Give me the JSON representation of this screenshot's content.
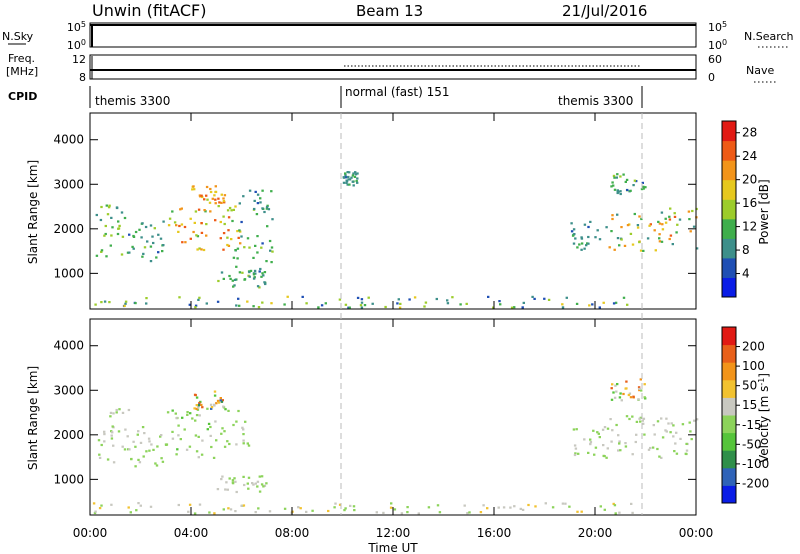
{
  "header": {
    "station": "Unwin (fitACF)",
    "beam": "Beam 13",
    "date": "21/Jul/2016"
  },
  "nsky_panel": {
    "label": "N.Sky",
    "left_ticks": [
      "10^5",
      "10^0"
    ],
    "right_ticks": [
      "10^5",
      "10^0"
    ],
    "right_label": "N.Search"
  },
  "freq_panel": {
    "label_line1": "Freq.",
    "label_line2": "[MHz]",
    "left_ticks": [
      "12",
      "8"
    ],
    "right_ticks": [
      "60",
      "0"
    ],
    "right_label": "Nave"
  },
  "cpid": {
    "label": "CPID",
    "segments": [
      {
        "text": "themis 3300",
        "start_hour": 0
      },
      {
        "text": "normal (fast) 151",
        "start_hour": 10
      },
      {
        "text": "themis 3300",
        "start_hour": 22
      }
    ]
  },
  "x_axis": {
    "label": "Time UT",
    "ticks": [
      "00:00",
      "04:00",
      "08:00",
      "12:00",
      "16:00",
      "20:00",
      "00:00"
    ]
  },
  "chart_data": [
    {
      "type": "heatmap",
      "title": "",
      "xlabel": "Time UT",
      "ylabel": "Slant Range [km]",
      "xlim_hours": [
        0,
        24
      ],
      "ylim_km": [
        200,
        4600
      ],
      "yticks": [
        "1000",
        "2000",
        "3000",
        "4000"
      ],
      "colorbar": {
        "label": "Power [dB]",
        "ticks": [
          "4",
          "8",
          "12",
          "16",
          "20",
          "24",
          "28"
        ],
        "range": [
          0,
          30
        ],
        "colors": [
          "#0a1de6",
          "#1f4fb4",
          "#3d8f8a",
          "#3fae4c",
          "#9ccc2b",
          "#e6c81e",
          "#f2941a",
          "#ee5a16",
          "#e11a14"
        ]
      },
      "regions": [
        {
          "hours": [
            0.2,
            1.5
          ],
          "km": [
            1400,
            2600
          ],
          "value_range": [
            6,
            16
          ]
        },
        {
          "hours": [
            1.5,
            3.0
          ],
          "km": [
            1300,
            2200
          ],
          "value_range": [
            6,
            14
          ]
        },
        {
          "hours": [
            3.0,
            6.3
          ],
          "km": [
            1500,
            2600
          ],
          "value_range": [
            12,
            26
          ]
        },
        {
          "hours": [
            4.0,
            5.3
          ],
          "km": [
            2600,
            3000
          ],
          "value_range": [
            16,
            26
          ]
        },
        {
          "hours": [
            5.5,
            7.2
          ],
          "km": [
            1000,
            2900
          ],
          "value_range": [
            6,
            14
          ]
        },
        {
          "hours": [
            5.0,
            7.0
          ],
          "km": [
            700,
            1100
          ],
          "value_range": [
            6,
            16
          ]
        },
        {
          "hours": [
            10.0,
            10.6
          ],
          "km": [
            3000,
            3300
          ],
          "value_range": [
            6,
            12
          ]
        },
        {
          "hours": [
            0.0,
            21.5
          ],
          "km": [
            250,
            500
          ],
          "value_range": [
            4,
            18
          ]
        },
        {
          "hours": [
            19.0,
            21.0
          ],
          "km": [
            1500,
            2200
          ],
          "value_range": [
            6,
            12
          ]
        },
        {
          "hours": [
            20.5,
            24.0
          ],
          "km": [
            1500,
            2500
          ],
          "value_range": [
            8,
            26
          ]
        },
        {
          "hours": [
            20.5,
            22.0
          ],
          "km": [
            2800,
            3300
          ],
          "value_range": [
            6,
            14
          ]
        }
      ]
    },
    {
      "type": "heatmap",
      "title": "",
      "xlabel": "Time UT",
      "ylabel": "Slant Range [km]",
      "xlim_hours": [
        0,
        24
      ],
      "ylim_km": [
        200,
        4600
      ],
      "yticks": [
        "1000",
        "2000",
        "3000",
        "4000"
      ],
      "colorbar": {
        "label": "Velocity [m s^-1]",
        "ticks": [
          "200",
          "100",
          "50",
          "15",
          "-15",
          "-50",
          "-100",
          "-200"
        ],
        "range": [
          -250,
          250
        ],
        "colors": [
          "#0a1de6",
          "#2f63b8",
          "#2f8f4a",
          "#55c43a",
          "#8cd35a",
          "#c8c8c0",
          "#f2c230",
          "#f2941a",
          "#e8601a",
          "#e11a14"
        ]
      },
      "regions": [
        {
          "hours": [
            0.2,
            1.5
          ],
          "km": [
            1400,
            2600
          ],
          "value_range": [
            -20,
            20
          ]
        },
        {
          "hours": [
            1.5,
            3.0
          ],
          "km": [
            1300,
            2200
          ],
          "value_range": [
            -20,
            20
          ]
        },
        {
          "hours": [
            3.0,
            6.3
          ],
          "km": [
            1500,
            2600
          ],
          "value_range": [
            -20,
            60
          ]
        },
        {
          "hours": [
            4.0,
            5.3
          ],
          "km": [
            2600,
            3000
          ],
          "value_range": [
            -200,
            200
          ]
        },
        {
          "hours": [
            5.0,
            7.0
          ],
          "km": [
            700,
            1100
          ],
          "value_range": [
            -60,
            60
          ]
        },
        {
          "hours": [
            0.0,
            21.5
          ],
          "km": [
            250,
            500
          ],
          "value_range": [
            -80,
            40
          ]
        },
        {
          "hours": [
            19.0,
            21.0
          ],
          "km": [
            1500,
            2200
          ],
          "value_range": [
            -20,
            20
          ]
        },
        {
          "hours": [
            20.5,
            24.0
          ],
          "km": [
            1500,
            2500
          ],
          "value_range": [
            -30,
            30
          ]
        },
        {
          "hours": [
            20.5,
            22.0
          ],
          "km": [
            2800,
            3300
          ],
          "value_range": [
            -200,
            100
          ]
        }
      ]
    }
  ]
}
